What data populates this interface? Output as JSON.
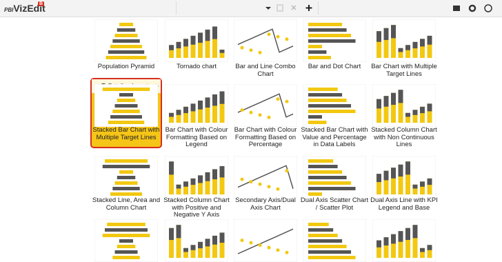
{
  "header": {
    "logo": "PBI",
    "brand": "VizEdit",
    "badge": "B"
  },
  "selected": {
    "detail": "Detail",
    "import": "Import"
  },
  "tiles": [
    {
      "title": "Population Pyramid"
    },
    {
      "title": "Tornado chart"
    },
    {
      "title": "Bar and Line Combo Chart"
    },
    {
      "title": "Bar and Dot Chart"
    },
    {
      "title": "Bar Chart with Multiple Target Lines"
    },
    {
      "title": "Stacked Bar Chart with Multiple Target Lines"
    },
    {
      "title": "Bar Chart with Colour Formatting Based on Legend"
    },
    {
      "title": "Bar Chart with Colour Formatting Based on Percentage"
    },
    {
      "title": "Stacked Bar Chart with Value and Percentage in Data Labels"
    },
    {
      "title": "Stacked Column Chart with Non Continuous Lines"
    },
    {
      "title": "Stacked Line, Area and Column Chart"
    },
    {
      "title": "Stacked Column Chart with Positive and Negative Y Axis"
    },
    {
      "title": "Secondary Axis/Dual Axis Chart"
    },
    {
      "title": "Dual Axis Scatter Chart / Scatter Plot"
    },
    {
      "title": "Dual Axis Line with KPI Legend and Base"
    }
  ]
}
